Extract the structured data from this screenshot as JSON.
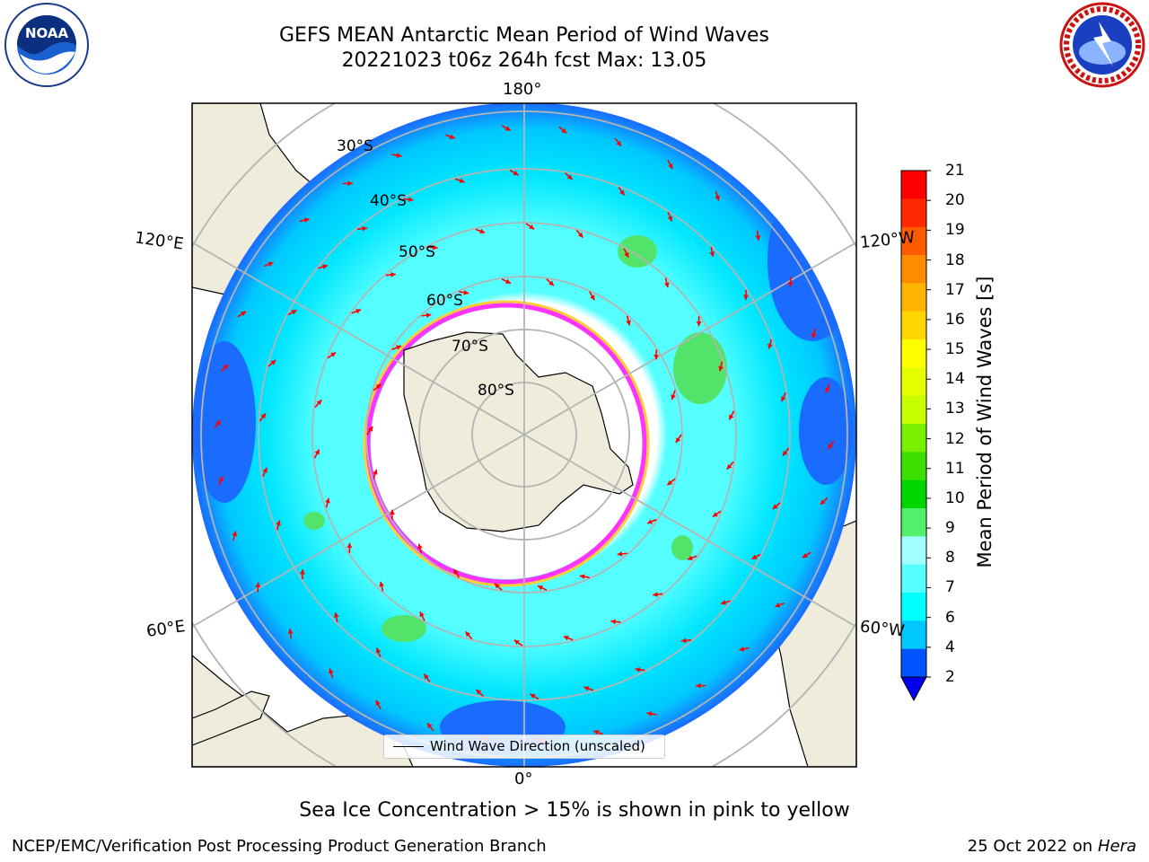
{
  "title": {
    "line1": "GEFS MEAN Antarctic Mean Period of Wind Waves",
    "line2": "20221023 t06z 264h fcst   Max: 13.05"
  },
  "logos": {
    "left": "noaa-logo",
    "right": "nws-logo"
  },
  "map": {
    "projection": "south-polar-stereographic",
    "longitude_labels": {
      "top": "180°",
      "bottom": "0°",
      "upper_left": "120°E",
      "lower_left": "60°E",
      "upper_right": "120°W",
      "lower_right": "60°W"
    },
    "latitude_labels": [
      "30°S",
      "40°S",
      "50°S",
      "60°S",
      "70°S",
      "80°S"
    ],
    "land_color": "#efecdc",
    "ocean_colors": [
      "#1a6cff",
      "#00e6ff",
      "#55ffff",
      "#a6ffff",
      "#52e36a",
      "#33cc33"
    ],
    "sea_ice_colors": [
      "#ff33ff",
      "#ffcc33"
    ],
    "arrow_color": "#ff0000",
    "legend": "Wind Wave Direction (unscaled)"
  },
  "colorbar": {
    "label": "Mean Period of Wind Waves [s]",
    "ticks": [
      "2",
      "4",
      "6",
      "7",
      "8",
      "9",
      "10",
      "11",
      "12",
      "13",
      "14",
      "15",
      "16",
      "17",
      "18",
      "19",
      "20",
      "21"
    ],
    "colors": [
      "#0055ff",
      "#00c8ff",
      "#00ffff",
      "#55ffff",
      "#a0ffff",
      "#52f06a",
      "#00d600",
      "#3ce000",
      "#78f000",
      "#c8ff00",
      "#e6ff00",
      "#ffff00",
      "#ffd700",
      "#ffb400",
      "#ff8c00",
      "#ff5a00",
      "#ff2800",
      "#ff0000"
    ],
    "extend_color": "#0000ee"
  },
  "footer": {
    "ice_note": "Sea Ice Concentration > 15% is shown in pink to yellow",
    "credit": "NCEP/EMC/Verification Post Processing Product Generation Branch",
    "date": "25 Oct 2022 on",
    "machine": "Hera"
  }
}
